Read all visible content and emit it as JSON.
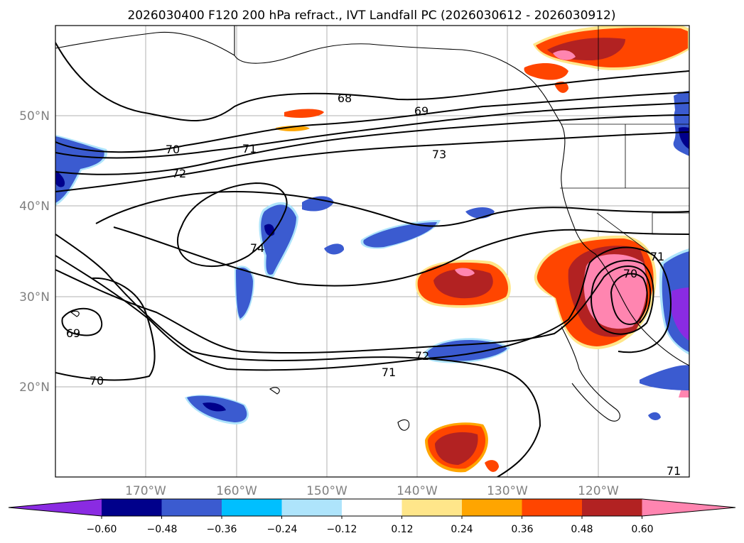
{
  "title": "2026030400 F120 200 hPa refract., IVT Landfall PC (2026030612 - 2026030912)",
  "lat_labels": [
    "50°N",
    "40°N",
    "30°N",
    "20°N"
  ],
  "lon_labels": [
    "170°W",
    "160°W",
    "150°W",
    "140°W",
    "130°W",
    "120°W"
  ],
  "contour_labels": [
    "68",
    "69",
    "70",
    "71",
    "72",
    "73",
    "74",
    "69",
    "70",
    "71",
    "72",
    "71",
    "70",
    "71"
  ],
  "colorbar": {
    "tick_labels": [
      "−0.60",
      "−0.48",
      "−0.36",
      "−0.24",
      "−0.12",
      "0.12",
      "0.24",
      "0.36",
      "0.48",
      "0.60"
    ],
    "colors": [
      "#8a2be2",
      "#00008b",
      "#3b5bd0",
      "#00bfff",
      "#aee4fb",
      "#ffffff",
      "#ffe68a",
      "#ffa500",
      "#ff4500",
      "#b22222",
      "#ff85b0"
    ]
  },
  "map": {
    "lon_range": [
      -180,
      -110
    ],
    "lat_range": [
      10,
      60
    ]
  }
}
